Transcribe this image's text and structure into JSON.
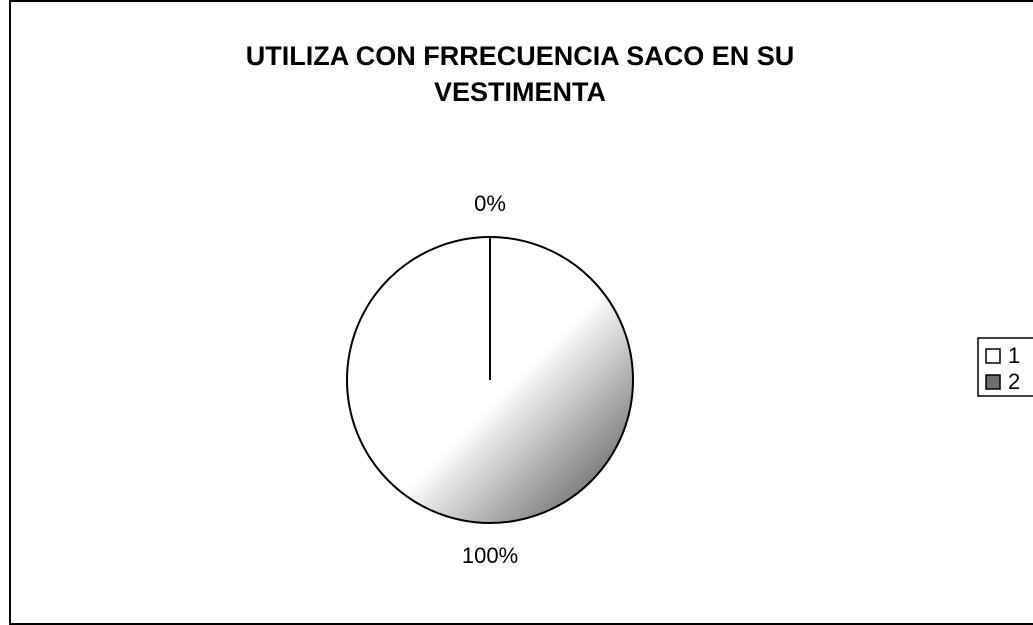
{
  "chart_data": {
    "type": "pie",
    "title": "UTILIZA CON FRRECUENCIA SACO EN SU VESTIMENTA",
    "categories": [
      "1",
      "2"
    ],
    "values": [
      0,
      100
    ],
    "value_labels": [
      "0%",
      "100%"
    ],
    "colors": [
      "#ffffff",
      "#6e6e6e"
    ],
    "legend": "right"
  }
}
